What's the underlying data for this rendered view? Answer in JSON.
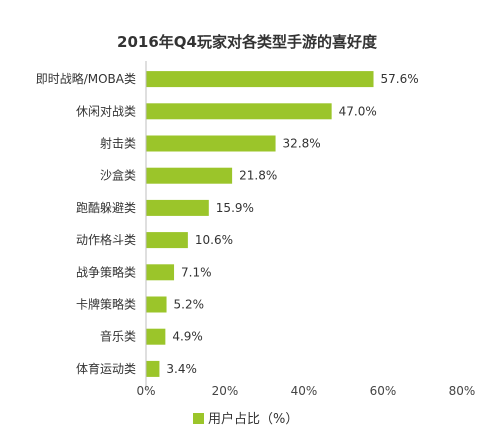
{
  "chart_data": {
    "type": "bar",
    "orientation": "horizontal",
    "title": "2016年Q4玩家对各类型手游的喜好度",
    "categories": [
      "即时战略/MOBA类",
      "休闲对战类",
      "射击类",
      "沙盒类",
      "跑酷躲避类",
      "动作格斗类",
      "战争策略类",
      "卡牌策略类",
      "音乐类",
      "体育运动类"
    ],
    "series": [
      {
        "name": "用户占比（%）",
        "values": [
          57.6,
          47.0,
          32.8,
          21.8,
          15.9,
          10.6,
          7.1,
          5.2,
          4.9,
          3.4
        ],
        "value_labels": [
          "57.6%",
          "47.0%",
          "32.8%",
          "21.8%",
          "15.9%",
          "10.6%",
          "7.1%",
          "5.2%",
          "4.9%",
          "3.4%"
        ]
      }
    ],
    "xlim": [
      0,
      80
    ],
    "xticks": [
      0,
      20,
      40,
      60,
      80
    ],
    "xtick_labels": [
      "0%",
      "20%",
      "40%",
      "60%",
      "80%"
    ],
    "grid": false,
    "legend_position": "bottom",
    "bar_color": "#9BC52A"
  }
}
